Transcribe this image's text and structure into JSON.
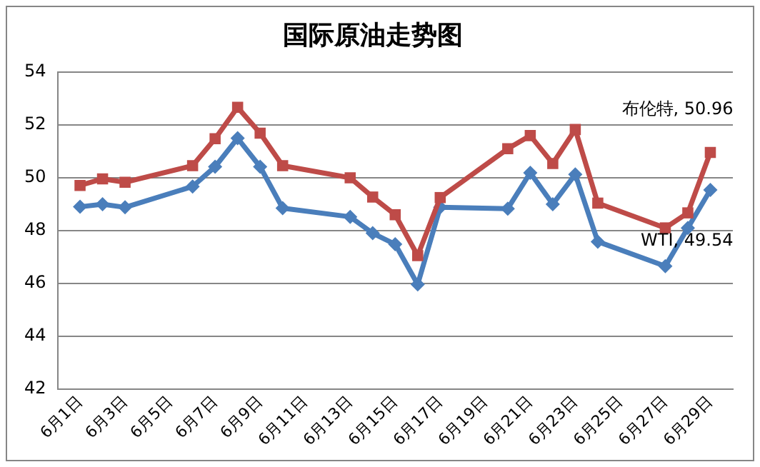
{
  "chart_data": {
    "type": "line",
    "title": "国际原油走势图",
    "x": [
      "--06-01",
      "--06-02",
      "--06-03",
      "--06-06",
      "--06-07",
      "--06-08",
      "--06-09",
      "--06-10",
      "--06-13",
      "--06-14",
      "--06-15",
      "--06-16",
      "--06-17",
      "--06-20",
      "--06-21",
      "--06-22",
      "--06-23",
      "--06-24",
      "--06-27",
      "--06-28",
      "--06-29"
    ],
    "series": [
      {
        "color": "#be4b48",
        "marker": "square",
        "values": [
          49.71,
          49.96,
          49.83,
          50.46,
          51.48,
          52.67,
          51.69,
          50.46,
          50.0,
          49.27,
          48.6,
          47.05,
          49.25,
          51.1,
          51.6,
          50.54,
          51.83,
          49.04,
          48.1,
          48.67,
          50.96
        ]
      },
      {
        "color": "#4a7ebb",
        "marker": "diamond",
        "values": [
          48.9,
          49.0,
          48.88,
          49.67,
          50.42,
          51.5,
          50.42,
          48.85,
          48.52,
          47.9,
          47.48,
          45.96,
          48.88,
          48.83,
          50.19,
          49.0,
          50.13,
          47.58,
          46.65,
          48.1,
          49.54
        ]
      }
    ],
    "xlim": [
      "--05-31",
      "--06-30"
    ],
    "xticks": [
      {
        "value": "--06-01",
        "label": "6月1日"
      },
      {
        "value": "--06-03",
        "label": "6月3日"
      },
      {
        "value": "--06-05",
        "label": "6月5日"
      },
      {
        "value": "--06-07",
        "label": "6月7日"
      },
      {
        "value": "--06-09",
        "label": "6月9日"
      },
      {
        "value": "--06-11",
        "label": "6月11日"
      },
      {
        "value": "--06-13",
        "label": "6月13日"
      },
      {
        "value": "--06-15",
        "label": "6月15日"
      },
      {
        "value": "--06-17",
        "label": "6月17日"
      },
      {
        "value": "--06-19",
        "label": "6月19日"
      },
      {
        "value": "--06-21",
        "label": "6月21日"
      },
      {
        "value": "--06-23",
        "label": "6月23日"
      },
      {
        "value": "--06-25",
        "label": "6月25日"
      },
      {
        "value": "--06-27",
        "label": "6月27日"
      },
      {
        "value": "--06-29",
        "label": "6月29日"
      }
    ],
    "ylim": [
      42,
      54
    ],
    "yticks": [
      42,
      44,
      46,
      48,
      50,
      52,
      54
    ],
    "grid": "y",
    "legend": false,
    "line_style": "solid",
    "annotations": [
      {
        "text": "布伦特, 50.96",
        "x": "--06-29",
        "y": 50.96
      },
      {
        "text": "WTI, 49.54",
        "x": "--06-29",
        "y": 49.54
      }
    ]
  }
}
